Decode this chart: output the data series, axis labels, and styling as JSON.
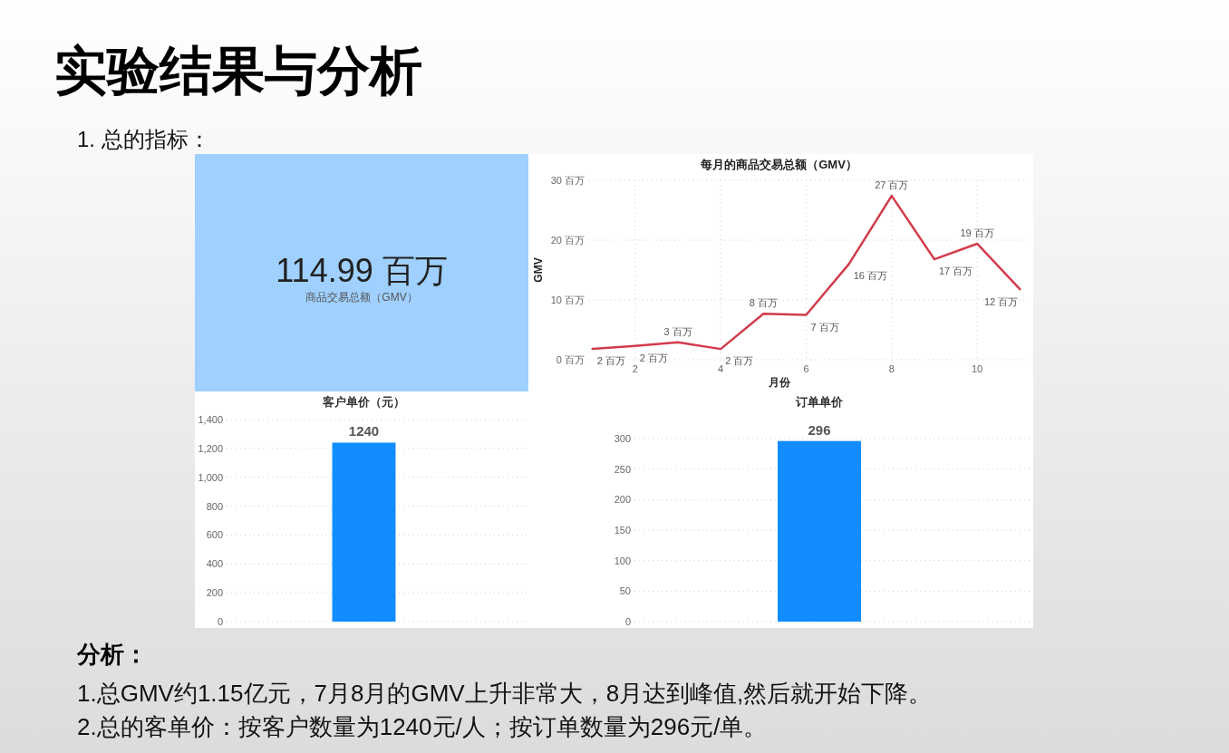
{
  "chart_data": [
    {
      "type": "other",
      "title": "实验结果与分析",
      "subtitle": "1. 总的指标：",
      "annotations": [
        "114.99 百万",
        "商品交易总额（GMV）"
      ]
    },
    {
      "type": "line",
      "title": "每月的商品交易总额（GMV）",
      "xlabel": "月份",
      "ylabel": "GMV",
      "x": [
        1,
        2,
        3,
        4,
        5,
        6,
        7,
        8,
        9,
        10,
        11
      ],
      "series": [
        {
          "color": "#d13c4b",
          "values": [
            1.8,
            2.3,
            2.9,
            1.8,
            7.7,
            7.5,
            16,
            27.4,
            16.8,
            19.4,
            11.8
          ],
          "value_labels": [
            "2 百万",
            "2 百万",
            "3 百万",
            "2 百万",
            "8 百万",
            "7 百万",
            "16 百万",
            "27 百万",
            "17 百万",
            "19 百万",
            "12 百万"
          ]
        }
      ],
      "xlim": [
        0.9,
        11.1
      ],
      "ylim": [
        0,
        30
      ],
      "xticks": [
        2,
        4,
        6,
        8,
        10
      ],
      "yticks": [
        {
          "value": 0,
          "label": "0 百万"
        },
        {
          "value": 10,
          "label": "10 百万"
        },
        {
          "value": 20,
          "label": "20 百万"
        },
        {
          "value": 30,
          "label": "30 百万"
        }
      ],
      "grid": true,
      "line_style": "solid"
    },
    {
      "type": "bar",
      "title": "客户单价（元）",
      "categories": [
        null
      ],
      "values": [
        1240
      ],
      "color": "#118dff",
      "ylim": [
        0,
        1400
      ],
      "yticks": [
        0,
        200,
        400,
        600,
        800,
        {
          "value": 1000,
          "label": "1,000"
        },
        {
          "value": 1200,
          "label": "1,200"
        },
        {
          "value": 1400,
          "label": "1,400"
        }
      ],
      "grid": "y",
      "data_labels": true
    },
    {
      "type": "bar",
      "title": "订单单价",
      "categories": [
        null
      ],
      "values": [
        296
      ],
      "color": "#118dff",
      "ylim": [
        0,
        300
      ],
      "yticks": [
        0,
        50,
        100,
        150,
        200,
        250,
        300
      ],
      "grid": "y",
      "data_labels": true
    },
    {
      "type": "other",
      "title": "分析：",
      "annotations": [
        "1.总GMV约1.15亿元，7月8月的GMV上升非常大，8月达到峰值,然后就开始下降。",
        "2.总的客单价：按客户数量为1240元/人；按订单数量为296元/单。"
      ]
    }
  ]
}
